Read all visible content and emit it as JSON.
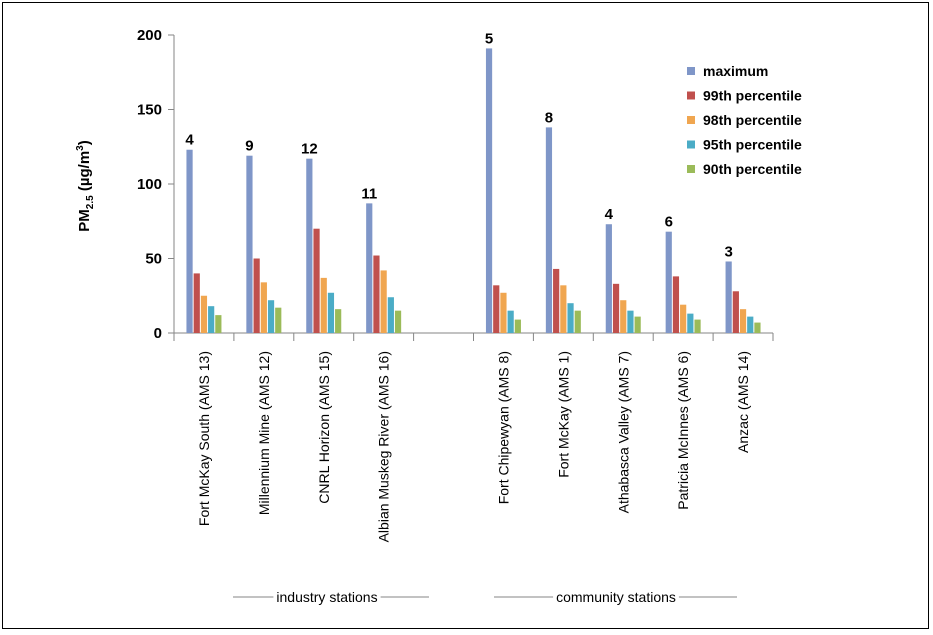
{
  "chart_data": {
    "type": "bar",
    "ylabel": {
      "main": "PM",
      "sub": "2.5",
      "unit_open": " (µg/m",
      "sup": "3",
      "unit_close": ")"
    },
    "ylim": [
      0,
      200
    ],
    "yticks": [
      0,
      50,
      100,
      150,
      200
    ],
    "categories": [
      "Fort McKay South (AMS 13)",
      "Millennium Mine (AMS 12)",
      "CNRL Horizon (AMS 15)",
      "Albian Muskeg River (AMS 16)",
      "",
      "Fort Chipewyan (AMS 8)",
      "Fort McKay (AMS 1)",
      "Athabasca Valley (AMS 7)",
      "Patricia McInnes (AMS 6)",
      "Anzac (AMS 14)"
    ],
    "counts": [
      "4",
      "9",
      "12",
      "11",
      "",
      "5",
      "8",
      "4",
      "6",
      "3"
    ],
    "series": [
      {
        "name": "maximum",
        "color": "#7F96C8",
        "values": [
          123,
          119,
          117,
          87,
          null,
          191,
          138,
          73,
          68,
          48
        ]
      },
      {
        "name": "99th percentile",
        "color": "#C0504D",
        "values": [
          40,
          50,
          70,
          52,
          null,
          32,
          43,
          33,
          38,
          28
        ]
      },
      {
        "name": "98th percentile",
        "color": "#F0A650",
        "values": [
          25,
          34,
          37,
          42,
          null,
          27,
          32,
          22,
          19,
          16
        ]
      },
      {
        "name": "95th percentile",
        "color": "#4BACC6",
        "values": [
          18,
          22,
          27,
          24,
          null,
          15,
          20,
          15,
          13,
          11
        ]
      },
      {
        "name": "90th percentile",
        "color": "#9BBB59",
        "values": [
          12,
          17,
          16,
          15,
          null,
          9,
          15,
          11,
          9,
          7
        ]
      }
    ],
    "groups": [
      {
        "label": "industry stations"
      },
      {
        "label": "community stations"
      }
    ],
    "legend_position": "top-right",
    "grid": false
  }
}
